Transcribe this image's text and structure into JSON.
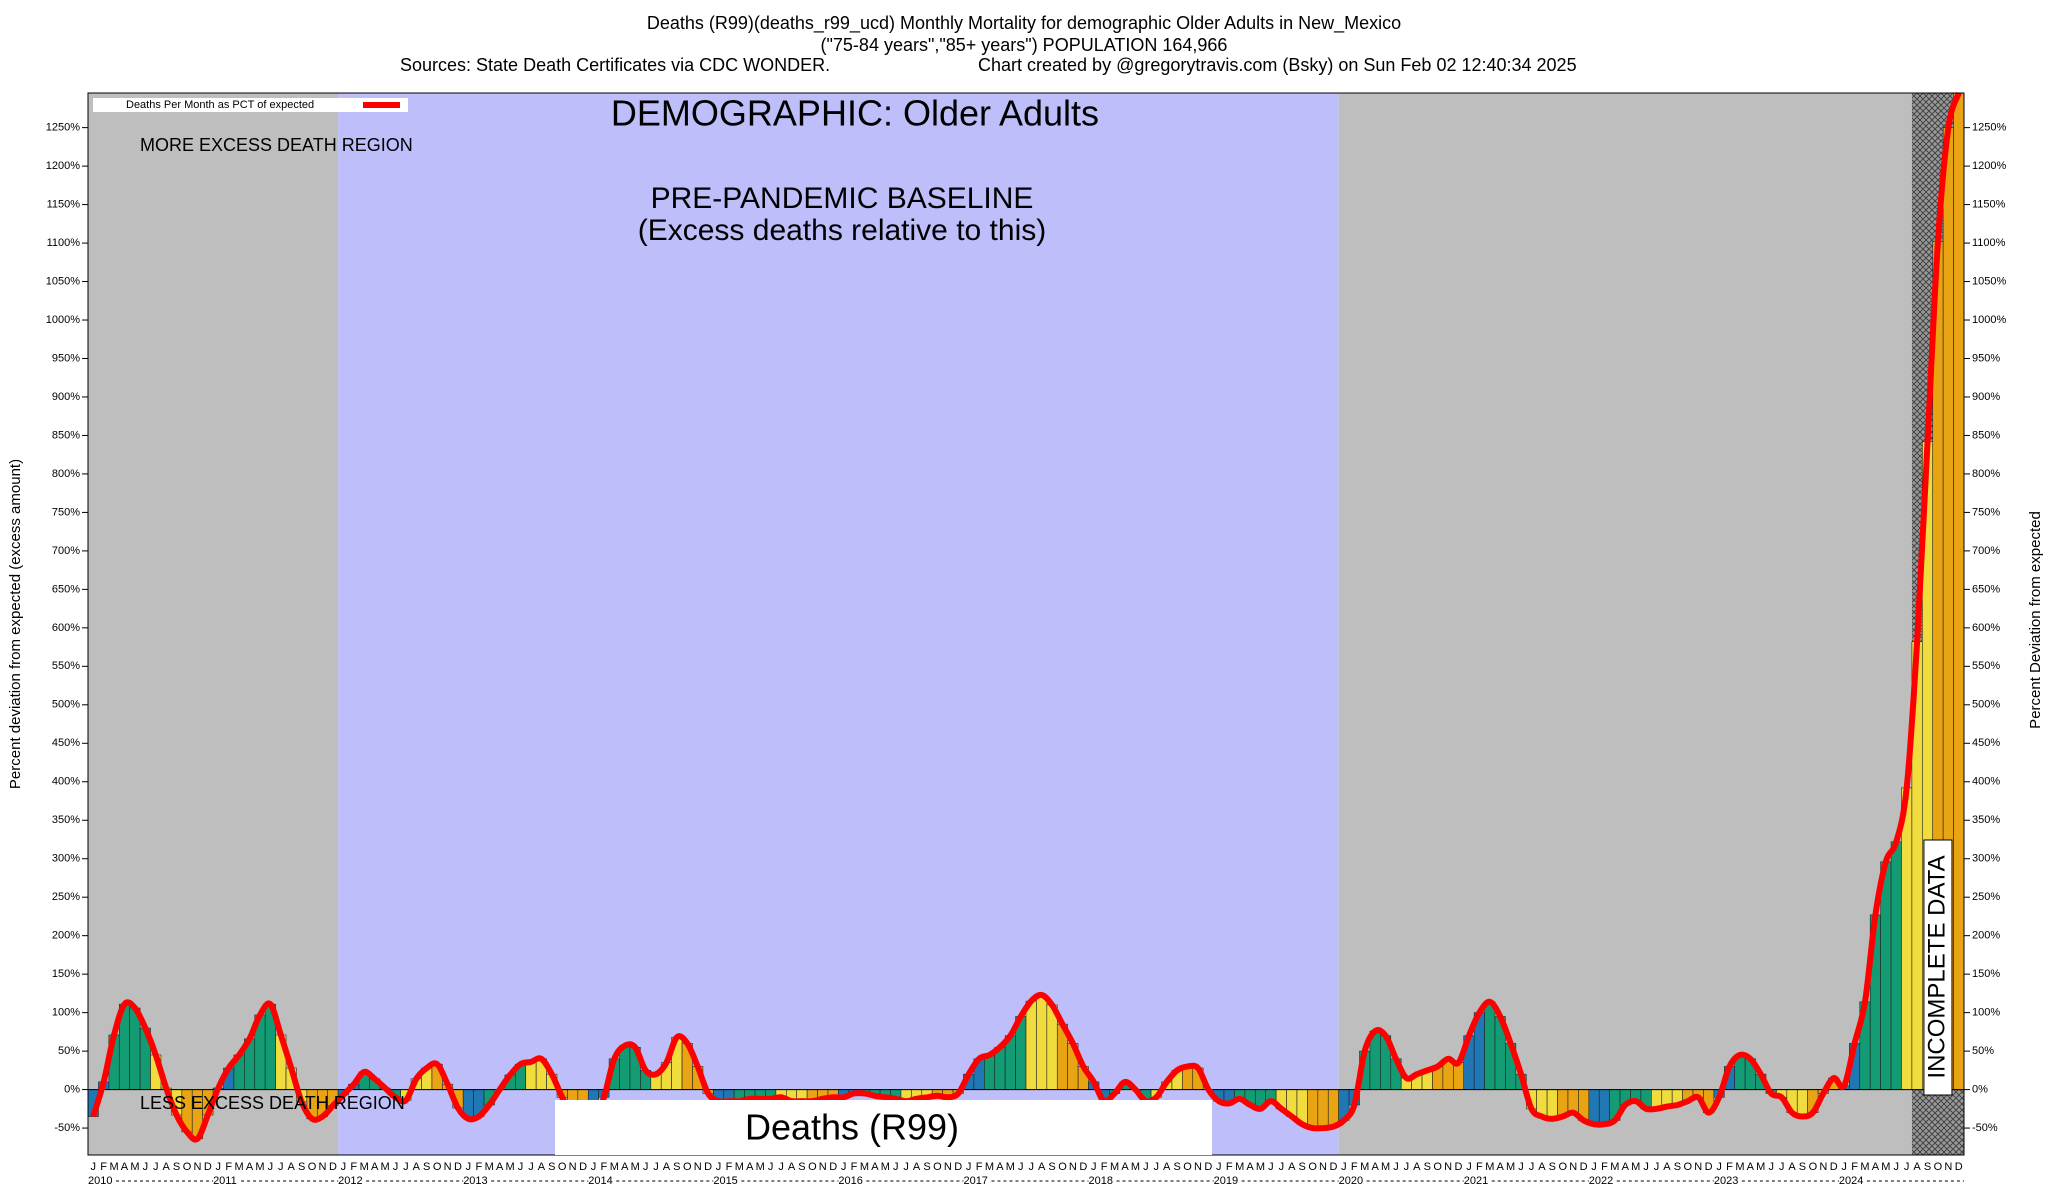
{
  "chart_data": {
    "type": "bar",
    "title": "Deaths (R99)(deaths_r99_ucd) Monthly Mortality for demographic Older Adults in New_Mexico",
    "subtitle": "(\"75-84 years\",\"85+ years\") POPULATION 164,966",
    "source": "Sources: State Death Certificates via CDC WONDER.",
    "credit": "Chart created by @gregorytravis.com (Bsky) on Sun Feb 02 12:40:34 2025",
    "ylabel": "Percent deviation from expected (excess amount)",
    "y2label": "Percent Deviation from expected",
    "annotations": {
      "demographic": "DEMOGRAPHIC: Older Adults",
      "more": "MORE EXCESS DEATH REGION",
      "less": "LESS EXCESS DEATH REGION",
      "baseline": "PRE-PANDEMIC BASELINE",
      "baseline_note": "(Excess deaths relative to this)",
      "cause": "Deaths (R99)",
      "incomplete": "INCOMPLETE DATA"
    },
    "years": [
      "2010",
      "2011",
      "2012",
      "2013",
      "2014",
      "2015",
      "2016",
      "2017",
      "2018",
      "2019",
      "2020",
      "2021",
      "2022",
      "2023",
      "2024"
    ],
    "categories": [
      "J",
      "F",
      "M",
      "A",
      "M",
      "J",
      "J",
      "A",
      "S",
      "O",
      "N",
      "D",
      "J",
      "F",
      "M",
      "A",
      "M",
      "J",
      "J",
      "A",
      "S",
      "O",
      "N",
      "D",
      "J",
      "F",
      "M",
      "A",
      "M",
      "J",
      "J",
      "A",
      "S",
      "O",
      "N",
      "D",
      "J",
      "F",
      "M",
      "A",
      "M",
      "J",
      "J",
      "A",
      "S",
      "O",
      "N",
      "D",
      "J",
      "F",
      "M",
      "A",
      "M",
      "J",
      "J",
      "A",
      "S",
      "O",
      "N",
      "D",
      "J",
      "F",
      "M",
      "A",
      "M",
      "J",
      "J",
      "A",
      "S",
      "O",
      "N",
      "D",
      "J",
      "F",
      "M",
      "A",
      "M",
      "J",
      "J",
      "A",
      "S",
      "O",
      "N",
      "D",
      "J",
      "F",
      "M",
      "A",
      "M",
      "J",
      "J",
      "A",
      "S",
      "O",
      "N",
      "D",
      "J",
      "F",
      "M",
      "A",
      "M",
      "J",
      "J",
      "A",
      "S",
      "O",
      "N",
      "D",
      "J",
      "F",
      "M",
      "A",
      "M",
      "J",
      "J",
      "A",
      "S",
      "O",
      "N",
      "D",
      "J",
      "F",
      "M",
      "A",
      "M",
      "J",
      "J",
      "A",
      "S",
      "O",
      "N",
      "D",
      "J",
      "F",
      "M",
      "A",
      "M",
      "J",
      "J",
      "A",
      "S",
      "O",
      "N",
      "D",
      "J",
      "F",
      "M",
      "A",
      "M",
      "J",
      "J",
      "A",
      "S",
      "O",
      "N",
      "D",
      "J",
      "F",
      "M",
      "A",
      "M",
      "J",
      "J",
      "A",
      "S",
      "O",
      "N",
      "D",
      "J",
      "F",
      "M",
      "A",
      "M",
      "J",
      "J",
      "A",
      "S",
      "O",
      "N",
      "D"
    ],
    "month_colors": [
      "#1f78b4",
      "#1f78b4",
      "#139b73",
      "#139b73",
      "#139b73",
      "#139b73",
      "#f0dc3c",
      "#f0dc3c",
      "#f0dc3c",
      "#e8a412",
      "#e8a412",
      "#e8a412"
    ],
    "series": [
      {
        "name": "Deaths Per Month as PCT of expected",
        "color": "#ff0000",
        "values": [
          -35,
          10,
          71,
          111,
          106,
          80,
          45,
          2,
          -33,
          -55,
          -64,
          -33,
          2,
          28,
          45,
          66,
          97,
          111,
          71,
          28,
          -16,
          -38,
          -35,
          -21,
          -7,
          7,
          23,
          14,
          2,
          -10,
          -14,
          14,
          28,
          33,
          7,
          -24,
          -38,
          -35,
          -20,
          0,
          19,
          33,
          36,
          40,
          20,
          -10,
          -35,
          -42,
          -42,
          -10,
          40,
          57,
          55,
          25,
          20,
          35,
          68,
          60,
          30,
          -5,
          -15,
          -15,
          -15,
          -12,
          -12,
          -12,
          -10,
          -15,
          -15,
          -15,
          -12,
          -10,
          -10,
          -5,
          -5,
          -8,
          -10,
          -12,
          -15,
          -12,
          -10,
          -8,
          -10,
          -5,
          20,
          40,
          45,
          55,
          70,
          95,
          115,
          123,
          110,
          85,
          60,
          30,
          10,
          -15,
          -5,
          10,
          0,
          -15,
          -10,
          10,
          25,
          30,
          28,
          0,
          -15,
          -18,
          -12,
          -20,
          -25,
          -15,
          -25,
          -35,
          -45,
          -50,
          -50,
          -48,
          -40,
          -20,
          50,
          76,
          70,
          40,
          15,
          20,
          25,
          30,
          40,
          35,
          70,
          100,
          114,
          95,
          60,
          20,
          -25,
          -35,
          -38,
          -35,
          -30,
          -40,
          -45,
          -45,
          -40,
          -20,
          -15,
          -25,
          -25,
          -22,
          -20,
          -15,
          -10,
          -30,
          -10,
          30,
          45,
          40,
          20,
          -5,
          -10,
          -30,
          -35,
          -30,
          -5,
          15,
          5,
          60,
          114,
          227,
          296,
          322,
          392,
          582,
          842,
          1102,
          1250,
          1295
        ]
      }
    ],
    "ylim": [
      -85,
      1295
    ],
    "yticks": [
      {
        "value": -50,
        "label": "-50%"
      },
      {
        "value": 0,
        "label": "0%"
      },
      {
        "value": 50,
        "label": "50%"
      },
      {
        "value": 100,
        "label": "100%"
      },
      {
        "value": 150,
        "label": "150%"
      },
      {
        "value": 200,
        "label": "200%"
      },
      {
        "value": 250,
        "label": "250%"
      },
      {
        "value": 300,
        "label": "300%"
      },
      {
        "value": 350,
        "label": "350%"
      },
      {
        "value": 400,
        "label": "400%"
      },
      {
        "value": 450,
        "label": "450%"
      },
      {
        "value": 500,
        "label": "500%"
      },
      {
        "value": 550,
        "label": "550%"
      },
      {
        "value": 600,
        "label": "600%"
      },
      {
        "value": 650,
        "label": "650%"
      },
      {
        "value": 700,
        "label": "700%"
      },
      {
        "value": 750,
        "label": "750%"
      },
      {
        "value": 800,
        "label": "800%"
      },
      {
        "value": 850,
        "label": "850%"
      },
      {
        "value": 900,
        "label": "900%"
      },
      {
        "value": 950,
        "label": "950%"
      },
      {
        "value": 1000,
        "label": "1000%"
      },
      {
        "value": 1050,
        "label": "1050%"
      },
      {
        "value": 1100,
        "label": "1100%"
      },
      {
        "value": 1150,
        "label": "1150%"
      },
      {
        "value": 1200,
        "label": "1200%"
      },
      {
        "value": 1250,
        "label": "1250%"
      }
    ]
  }
}
